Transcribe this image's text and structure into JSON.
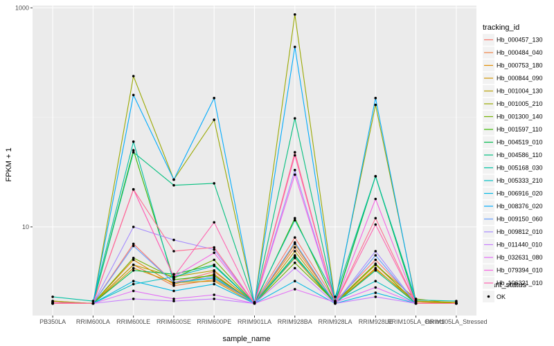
{
  "chart_data": {
    "type": "line",
    "xlabel": "sample_name",
    "ylabel": "FPKM + 1",
    "y_scale": "log10",
    "ylim": [
      1.55,
      1050
    ],
    "y_ticks": [
      10,
      1000
    ],
    "y_tick_labels": [
      "10",
      "1000"
    ],
    "grid": true,
    "legend_placement": "right",
    "categories": [
      "PB350LA",
      "RRIM600LA",
      "RRIM600LE",
      "RRIM600SE",
      "RRIM600PE",
      "RRIM901LA",
      "RRIM928BA",
      "RRIM928LA",
      "RRIM928LE",
      "RRIM105LA_Control",
      "RRIM105LA_Stressed"
    ],
    "legend_title": "tracking_id",
    "point_legend": {
      "title": "quant_status",
      "label": "OK"
    },
    "series": [
      {
        "name": "Hb_000457_130",
        "color": "#F8766D",
        "values": [
          2.05,
          2.0,
          7.0,
          3.1,
          3.9,
          2.05,
          8.0,
          2.1,
          5.0,
          2.1,
          2.0
        ]
      },
      {
        "name": "Hb_000484_040",
        "color": "#EE8043",
        "values": [
          2.1,
          2.0,
          4.5,
          2.9,
          3.3,
          2.05,
          6.5,
          2.05,
          4.5,
          2.05,
          2.0
        ]
      },
      {
        "name": "Hb_000753_180",
        "color": "#E08B00",
        "values": [
          2.0,
          2.0,
          5.0,
          3.0,
          3.7,
          2.0,
          7.0,
          2.0,
          4.2,
          2.0,
          2.0
        ]
      },
      {
        "name": "Hb_000844_090",
        "color": "#CF9400",
        "values": [
          2.0,
          2.0,
          4.2,
          3.1,
          3.2,
          2.0,
          5.2,
          2.0,
          4.1,
          2.1,
          2.05
        ]
      },
      {
        "name": "Hb_001004_130",
        "color": "#B79F00",
        "values": [
          2.0,
          2.0,
          4.5,
          3.5,
          4.0,
          2.0,
          6.0,
          2.0,
          4.5,
          2.2,
          2.0
        ]
      },
      {
        "name": "Hb_001005_210",
        "color": "#99A800",
        "values": [
          2.1,
          2.0,
          238,
          27,
          95,
          2.0,
          870,
          2.1,
          130,
          2.1,
          2.0
        ]
      },
      {
        "name": "Hb_001300_140",
        "color": "#72B000",
        "values": [
          2.0,
          2.0,
          5.2,
          3.4,
          5.0,
          2.0,
          4.7,
          2.05,
          4.6,
          2.0,
          2.0
        ]
      },
      {
        "name": "Hb_001597_110",
        "color": "#39B600",
        "values": [
          2.05,
          2.0,
          50,
          3.3,
          3.6,
          2.0,
          12,
          2.05,
          29,
          2.0,
          2.0
        ]
      },
      {
        "name": "Hb_004519_010",
        "color": "#00BB4E",
        "values": [
          2.0,
          2.0,
          4.0,
          3.7,
          4.5,
          2.0,
          5.5,
          2.0,
          29,
          2.0,
          2.0
        ]
      },
      {
        "name": "Hb_004586_110",
        "color": "#00BF7D",
        "values": [
          2.0,
          2.0,
          48,
          24,
          25,
          2.0,
          98,
          2.0,
          4.0,
          2.0,
          2.0
        ]
      },
      {
        "name": "Hb_005168_030",
        "color": "#00C1A3",
        "values": [
          2.3,
          2.1,
          60,
          3.1,
          3.4,
          2.05,
          11.5,
          2.3,
          29,
          2.15,
          2.1
        ]
      },
      {
        "name": "Hb_005333_210",
        "color": "#00BFC4",
        "values": [
          2.0,
          2.0,
          3.0,
          3.5,
          4.4,
          2.0,
          5.3,
          2.1,
          3.2,
          2.0,
          2.0
        ]
      },
      {
        "name": "Hb_006916_020",
        "color": "#00B8E5",
        "values": [
          2.0,
          2.0,
          3.2,
          2.6,
          3.0,
          2.0,
          3.2,
          2.0,
          2.5,
          2.0,
          2.0
        ]
      },
      {
        "name": "Hb_008376_020",
        "color": "#00ABFD",
        "values": [
          2.0,
          2.0,
          160,
          27,
          150,
          2.0,
          440,
          2.0,
          150,
          2.0,
          2.0
        ]
      },
      {
        "name": "Hb_009150_060",
        "color": "#619CFF",
        "values": [
          2.0,
          2.0,
          6.7,
          3.1,
          3.5,
          2.0,
          7.2,
          2.0,
          5.5,
          2.0,
          2.0
        ]
      },
      {
        "name": "Hb_009812_010",
        "color": "#A58AFF",
        "values": [
          2.0,
          2.0,
          10,
          7.6,
          6.2,
          2.0,
          33,
          2.0,
          6.0,
          2.0,
          2.0
        ]
      },
      {
        "name": "Hb_011440_010",
        "color": "#C77CFF",
        "values": [
          2.0,
          2.0,
          2.2,
          2.1,
          2.2,
          2.0,
          4.2,
          2.0,
          2.3,
          2.0,
          2.0
        ]
      },
      {
        "name": "Hb_032631_080",
        "color": "#E36EF6",
        "values": [
          2.0,
          2.0,
          2.6,
          2.2,
          2.4,
          2.0,
          2.7,
          2.05,
          2.8,
          2.0,
          2.0
        ]
      },
      {
        "name": "Hb_079394_010",
        "color": "#F564E3",
        "values": [
          2.0,
          2.0,
          22,
          3.5,
          5.8,
          2.0,
          30,
          2.0,
          18,
          2.0,
          2.0
        ]
      },
      {
        "name": "Hb_106321_010",
        "color": "#FF64B0",
        "values": [
          2.05,
          2.0,
          22,
          3.5,
          11,
          2.0,
          45,
          2.0,
          10.5,
          2.0,
          2.0
        ]
      },
      {
        "name": "",
        "color": "#FF6C91",
        "values": [
          2.0,
          2.0,
          22,
          6.0,
          6.5,
          2.0,
          48,
          2.0,
          12,
          2.0,
          2.0
        ]
      }
    ]
  }
}
